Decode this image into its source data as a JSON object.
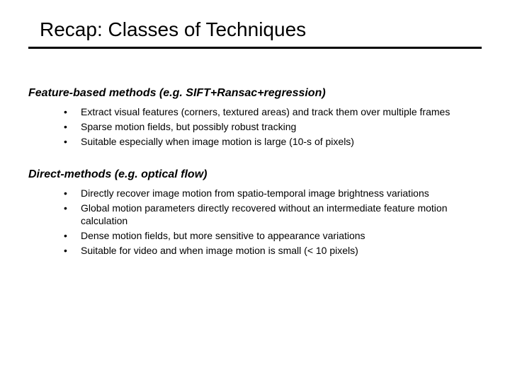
{
  "title": "Recap: Classes of Techniques",
  "sections": [
    {
      "heading": "Feature-based methods (e.g. SIFT+Ransac+regression)",
      "bullets": [
        "Extract visual features (corners, textured areas) and track them over multiple frames",
        "Sparse motion fields, but possibly robust tracking",
        "Suitable especially when image motion is large (10-s of pixels)"
      ]
    },
    {
      "heading": "Direct-methods (e.g. optical flow)",
      "bullets": [
        "Directly recover image motion from spatio-temporal image brightness variations",
        "Global motion parameters directly recovered without an intermediate feature motion calculation",
        "Dense motion fields, but more sensitive to appearance variations",
        "Suitable for video and when image motion is small (< 10 pixels)"
      ]
    }
  ],
  "style": {
    "background_color": "#ffffff",
    "text_color": "#000000",
    "title_fontsize": 28,
    "heading_fontsize": 16,
    "body_fontsize": 14,
    "underline_thickness": 3
  }
}
